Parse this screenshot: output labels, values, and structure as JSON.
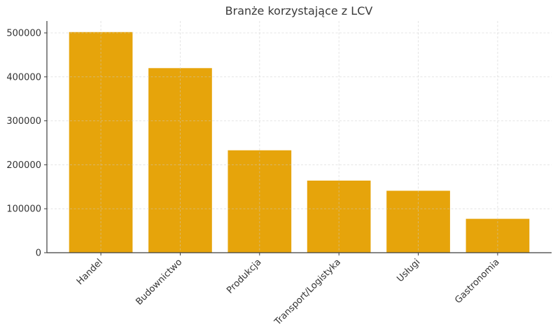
{
  "chart_data": {
    "type": "bar",
    "title": "Branże korzystające z LCV",
    "categories": [
      "Handel",
      "Budownictwo",
      "Produkcja",
      "Transport/Logistyka",
      "Usługi",
      "Gastronomia"
    ],
    "values": [
      502000,
      420000,
      233000,
      164000,
      141000,
      77000
    ],
    "xlabel": "",
    "ylabel": "",
    "ylim": [
      0,
      527100
    ],
    "yticks": [
      0,
      100000,
      200000,
      300000,
      400000,
      500000
    ],
    "ytick_labels": [
      "0",
      "100000",
      "200000",
      "300000",
      "400000",
      "500000"
    ],
    "bar_color": "#E6A40B",
    "spine_color": "#3E3E3E",
    "text_color": "#333333",
    "grid_color": "#C9C9C9",
    "grid_style": "dashed",
    "legend_position": "none",
    "x_label_rotation_deg": 45
  }
}
